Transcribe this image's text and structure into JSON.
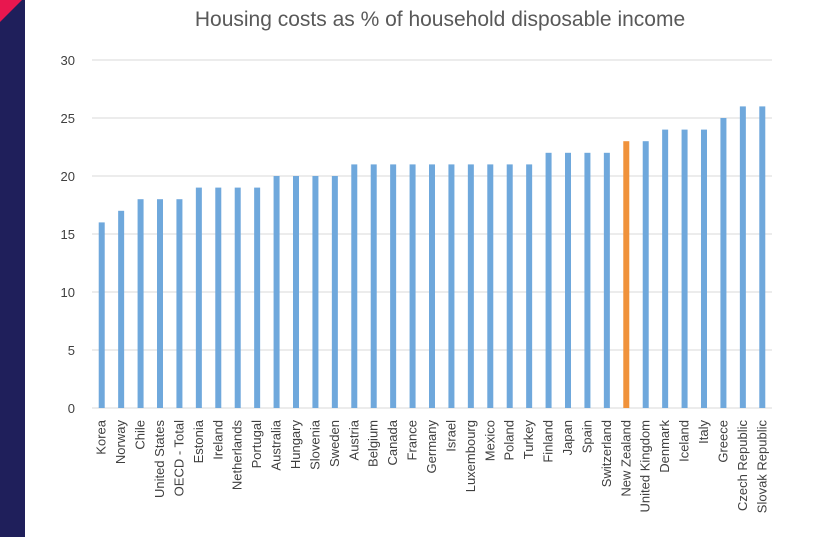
{
  "chart_data": {
    "type": "bar",
    "title": "Housing costs as % of household disposable income",
    "xlabel": "",
    "ylabel": "",
    "ylim": [
      0,
      30
    ],
    "yticks": [
      0,
      5,
      10,
      15,
      20,
      25,
      30
    ],
    "grid": true,
    "categories": [
      "Korea",
      "Norway",
      "Chile",
      "United States",
      "OECD - Total",
      "Estonia",
      "Ireland",
      "Netherlands",
      "Portugal",
      "Australia",
      "Hungary",
      "Slovenia",
      "Sweden",
      "Austria",
      "Belgium",
      "Canada",
      "France",
      "Germany",
      "Israel",
      "Luxembourg",
      "Mexico",
      "Poland",
      "Turkey",
      "Finland",
      "Japan",
      "Spain",
      "Switzerland",
      "New Zealand",
      "United Kingdom",
      "Denmark",
      "Iceland",
      "Italy",
      "Greece",
      "Czech Republic",
      "Slovak Republic"
    ],
    "values": [
      16,
      17,
      18,
      18,
      18,
      19,
      19,
      19,
      19,
      20,
      20,
      20,
      20,
      21,
      21,
      21,
      21,
      21,
      21,
      21,
      21,
      21,
      21,
      22,
      22,
      22,
      22,
      23,
      23,
      24,
      24,
      24,
      25,
      26,
      26
    ],
    "highlight_category": "New Zealand",
    "colors": {
      "bar": "#6fa8dc",
      "highlight": "#f0923b",
      "grid": "#d9d9d9"
    }
  }
}
